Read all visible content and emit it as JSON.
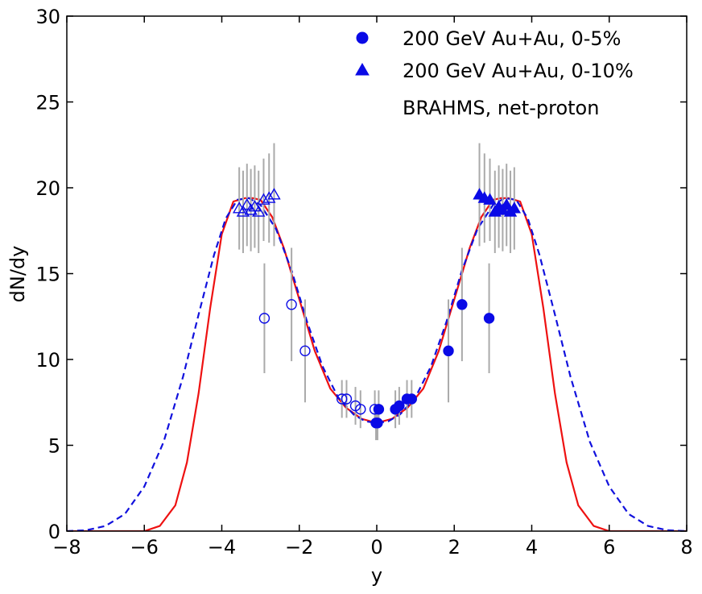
{
  "chart_data": {
    "type": "scatter",
    "title": "",
    "xlabel": "y",
    "ylabel": "dN/dy",
    "xlim": [
      -8,
      8
    ],
    "ylim": [
      0,
      30
    ],
    "xticks": [
      -8,
      -6,
      -4,
      -2,
      0,
      2,
      4,
      6,
      8
    ],
    "yticks": [
      0,
      5,
      10,
      15,
      20,
      25,
      30
    ],
    "xtick_labels": [
      "−8",
      "−6",
      "−4",
      "−2",
      "0",
      "2",
      "4",
      "6",
      "8"
    ],
    "ytick_labels": [
      "0",
      "5",
      "10",
      "15",
      "20",
      "25",
      "30"
    ],
    "grid": false,
    "legend": {
      "placement": "top-right",
      "entries": [
        {
          "label": "200 GeV Au+Au, 0-5%",
          "marker": "circle"
        },
        {
          "label": "200 GeV Au+Au, 0-10%",
          "marker": "triangle"
        },
        {
          "label": "BRAHMS, net-proton",
          "marker": "none"
        }
      ]
    },
    "colors": {
      "markers": "#0a0ae6",
      "errorbars": "#aaaaaa",
      "solid_curve": "#ee1111",
      "dashed_curve": "#1111dd"
    },
    "series": [
      {
        "name": "200 GeV Au+Au, 0-5%",
        "marker": "circle",
        "points": [
          {
            "x": -0.02,
            "y": 6.3,
            "err": 1.0
          },
          {
            "x": 0.02,
            "y": 6.3,
            "err": 1.0
          },
          {
            "x": 0.05,
            "y": 7.1,
            "err": 1.1
          },
          {
            "x": 0.48,
            "y": 7.1,
            "err": 1.1
          },
          {
            "x": 0.58,
            "y": 7.3,
            "err": 1.1
          },
          {
            "x": 0.78,
            "y": 7.7,
            "err": 1.1
          },
          {
            "x": 0.9,
            "y": 7.7,
            "err": 1.1
          },
          {
            "x": 1.85,
            "y": 10.5,
            "err": 3.0
          },
          {
            "x": 2.2,
            "y": 13.2,
            "err": 3.3
          },
          {
            "x": 2.9,
            "y": 12.4,
            "err": 3.2
          }
        ],
        "mirrored_open": [
          {
            "x": -0.05,
            "y": 7.1,
            "err": 1.1
          },
          {
            "x": -0.42,
            "y": 7.1,
            "err": 1.1
          },
          {
            "x": -0.55,
            "y": 7.3,
            "err": 1.1
          },
          {
            "x": -0.78,
            "y": 7.7,
            "err": 1.1
          },
          {
            "x": -0.9,
            "y": 7.7,
            "err": 1.1
          },
          {
            "x": -1.85,
            "y": 10.5,
            "err": 3.0
          },
          {
            "x": -2.2,
            "y": 13.2,
            "err": 3.3
          },
          {
            "x": -2.9,
            "y": 12.4,
            "err": 3.2
          }
        ]
      },
      {
        "name": "200 GeV Au+Au, 0-10%",
        "marker": "triangle",
        "points": [
          {
            "x": 2.65,
            "y": 19.6,
            "err": 3.0
          },
          {
            "x": 2.78,
            "y": 19.4,
            "err": 2.6
          },
          {
            "x": 2.92,
            "y": 19.3,
            "err": 2.4
          },
          {
            "x": 3.05,
            "y": 18.6,
            "err": 2.4
          },
          {
            "x": 3.15,
            "y": 18.9,
            "err": 2.4
          },
          {
            "x": 3.25,
            "y": 18.7,
            "err": 2.4
          },
          {
            "x": 3.35,
            "y": 19.0,
            "err": 2.4
          },
          {
            "x": 3.45,
            "y": 18.6,
            "err": 2.4
          },
          {
            "x": 3.55,
            "y": 18.8,
            "err": 2.4
          }
        ],
        "mirrored_open": [
          {
            "x": -2.65,
            "y": 19.6,
            "err": 3.0
          },
          {
            "x": -2.78,
            "y": 19.4,
            "err": 2.6
          },
          {
            "x": -2.92,
            "y": 19.3,
            "err": 2.4
          },
          {
            "x": -3.05,
            "y": 18.6,
            "err": 2.4
          },
          {
            "x": -3.15,
            "y": 18.9,
            "err": 2.4
          },
          {
            "x": -3.25,
            "y": 18.7,
            "err": 2.4
          },
          {
            "x": -3.35,
            "y": 19.0,
            "err": 2.4
          },
          {
            "x": -3.45,
            "y": 18.6,
            "err": 2.4
          },
          {
            "x": -3.55,
            "y": 18.8,
            "err": 2.4
          }
        ]
      }
    ],
    "curves": [
      {
        "name": "solid-fit",
        "style": "solid",
        "x": [
          -8,
          -7,
          -6,
          -5.6,
          -5.2,
          -4.9,
          -4.6,
          -4.3,
          -4.0,
          -3.7,
          -3.4,
          -3.2,
          -3.0,
          -2.7,
          -2.4,
          -2.0,
          -1.6,
          -1.2,
          -0.8,
          -0.4,
          0,
          0.4,
          0.8,
          1.2,
          1.6,
          2.0,
          2.4,
          2.7,
          3.0,
          3.2,
          3.4,
          3.7,
          4.0,
          4.3,
          4.6,
          4.9,
          5.2,
          5.6,
          6.0,
          7.0,
          8.0
        ],
        "y": [
          0,
          0,
          0,
          0.3,
          1.5,
          4.0,
          8.0,
          13.0,
          17.3,
          19.2,
          19.4,
          19.4,
          19.3,
          18.3,
          16.5,
          13.5,
          10.5,
          8.3,
          7.2,
          6.55,
          6.3,
          6.55,
          7.2,
          8.3,
          10.5,
          13.5,
          16.5,
          18.3,
          19.3,
          19.4,
          19.4,
          19.2,
          17.3,
          13.0,
          8.0,
          4.0,
          1.5,
          0.3,
          0,
          0,
          0
        ]
      },
      {
        "name": "dashed-fit",
        "style": "dashed",
        "x": [
          -8,
          -7.5,
          -7,
          -6.5,
          -6,
          -5.5,
          -5.0,
          -4.6,
          -4.2,
          -3.9,
          -3.6,
          -3.3,
          -3.0,
          -2.6,
          -2.2,
          -1.8,
          -1.4,
          -1.0,
          -0.6,
          -0.3,
          0,
          0.3,
          0.6,
          1.0,
          1.4,
          1.8,
          2.2,
          2.6,
          3.0,
          3.3,
          3.6,
          3.9,
          4.2,
          4.6,
          5.0,
          5.5,
          6.0,
          6.5,
          7.0,
          7.5,
          8.0
        ],
        "y": [
          0,
          0.05,
          0.3,
          1.0,
          2.6,
          5.2,
          9.0,
          12.6,
          16.1,
          18.2,
          19.3,
          19.4,
          19.0,
          17.6,
          15.2,
          12.2,
          9.6,
          7.8,
          6.8,
          6.4,
          6.3,
          6.4,
          6.8,
          7.8,
          9.6,
          12.2,
          15.2,
          17.6,
          19.0,
          19.4,
          19.3,
          18.2,
          16.1,
          12.6,
          9.0,
          5.2,
          2.6,
          1.0,
          0.3,
          0.05,
          0
        ]
      }
    ]
  }
}
